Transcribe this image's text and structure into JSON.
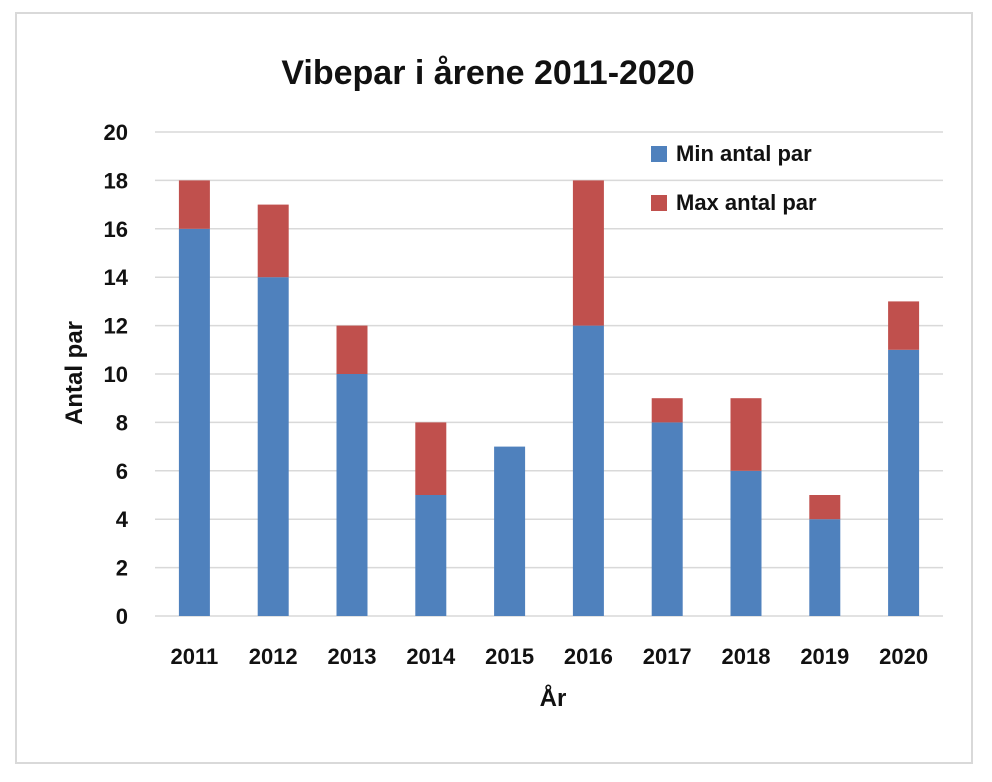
{
  "chart_data": {
    "type": "bar",
    "stacked": true,
    "title": "Vibepar i årene 2011-2020",
    "xlabel": "År",
    "ylabel": "Antal par",
    "categories": [
      "2011",
      "2012",
      "2013",
      "2014",
      "2015",
      "2016",
      "2017",
      "2018",
      "2019",
      "2020"
    ],
    "series": [
      {
        "name": "Min antal par",
        "values": [
          16,
          14,
          10,
          5,
          7,
          12,
          8,
          6,
          4,
          11
        ],
        "color": "#4f81bd"
      },
      {
        "name": "Max antal par",
        "values": [
          2,
          3,
          2,
          3,
          0,
          6,
          1,
          3,
          1,
          2
        ],
        "color": "#c0504d"
      }
    ],
    "ylim": [
      0,
      20
    ],
    "yticks": [
      "0",
      "2",
      "4",
      "6",
      "8",
      "10",
      "12",
      "14",
      "16",
      "18",
      "20"
    ],
    "grid": true,
    "legend_position": "top-right"
  }
}
